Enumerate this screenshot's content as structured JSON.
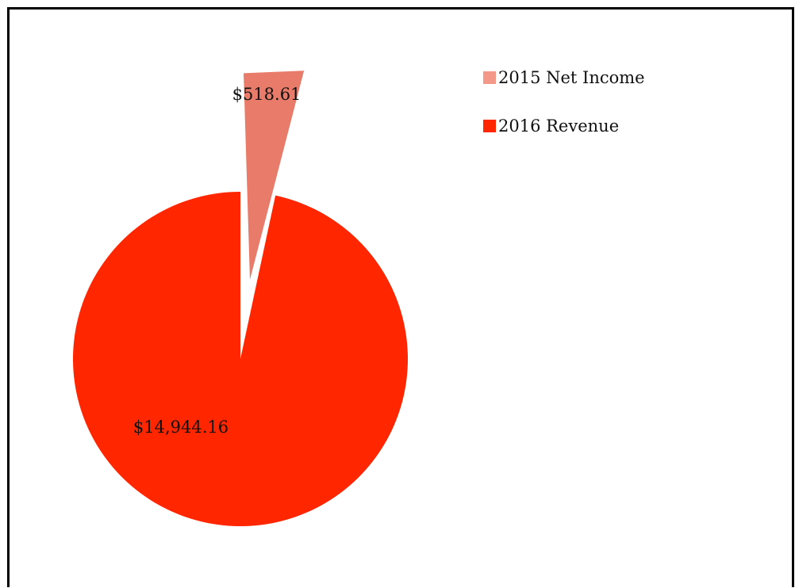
{
  "chart_data": {
    "type": "pie",
    "title": "",
    "categories": [
      "2015 Net Income",
      "2016 Revenue"
    ],
    "values": [
      518.61,
      14944.16
    ],
    "data_labels": [
      "$518.61",
      "$14,944.16"
    ],
    "colors": [
      "#E87B69",
      "#FF2600"
    ],
    "legend_colors": [
      "#F4998A",
      "#FF2600"
    ],
    "legend_position": "top-right",
    "exploded_slice": "2015 Net Income"
  }
}
